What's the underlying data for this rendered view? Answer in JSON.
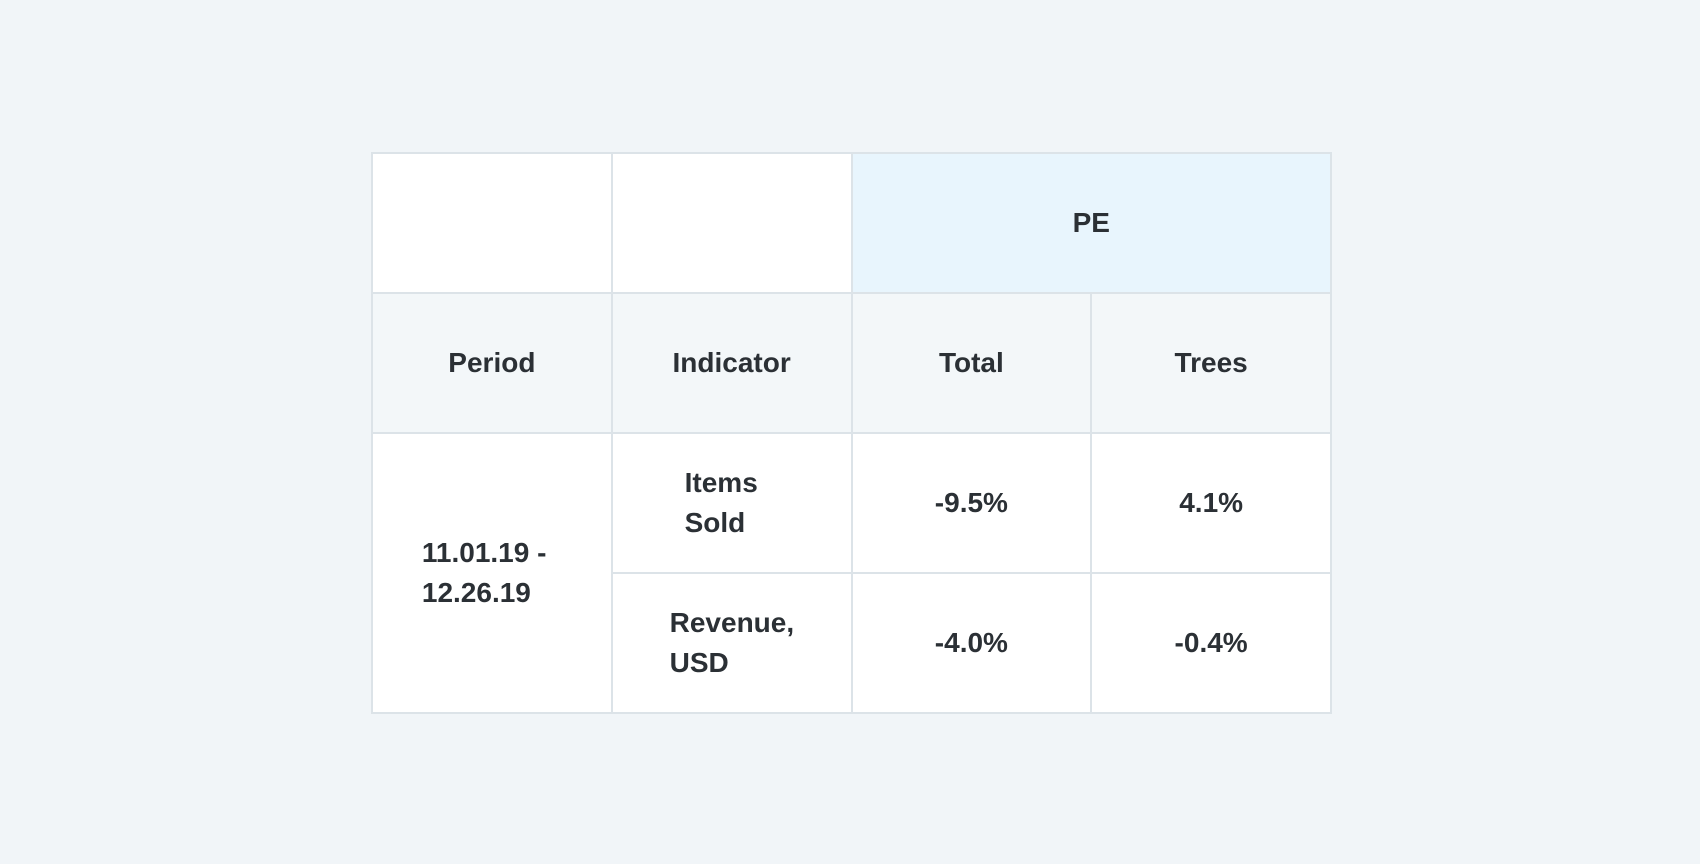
{
  "table": {
    "group_header": "PE",
    "columns": {
      "period": "Period",
      "indicator": "Indicator",
      "total": "Total",
      "trees": "Trees"
    },
    "period_value": "11.01.19 - 12.26.19",
    "rows": [
      {
        "indicator": "Items Sold",
        "total": "-9.5%",
        "trees": "4.1%"
      },
      {
        "indicator": "Revenue, USD",
        "total": "-4.0%",
        "trees": "-0.4%"
      }
    ]
  }
}
